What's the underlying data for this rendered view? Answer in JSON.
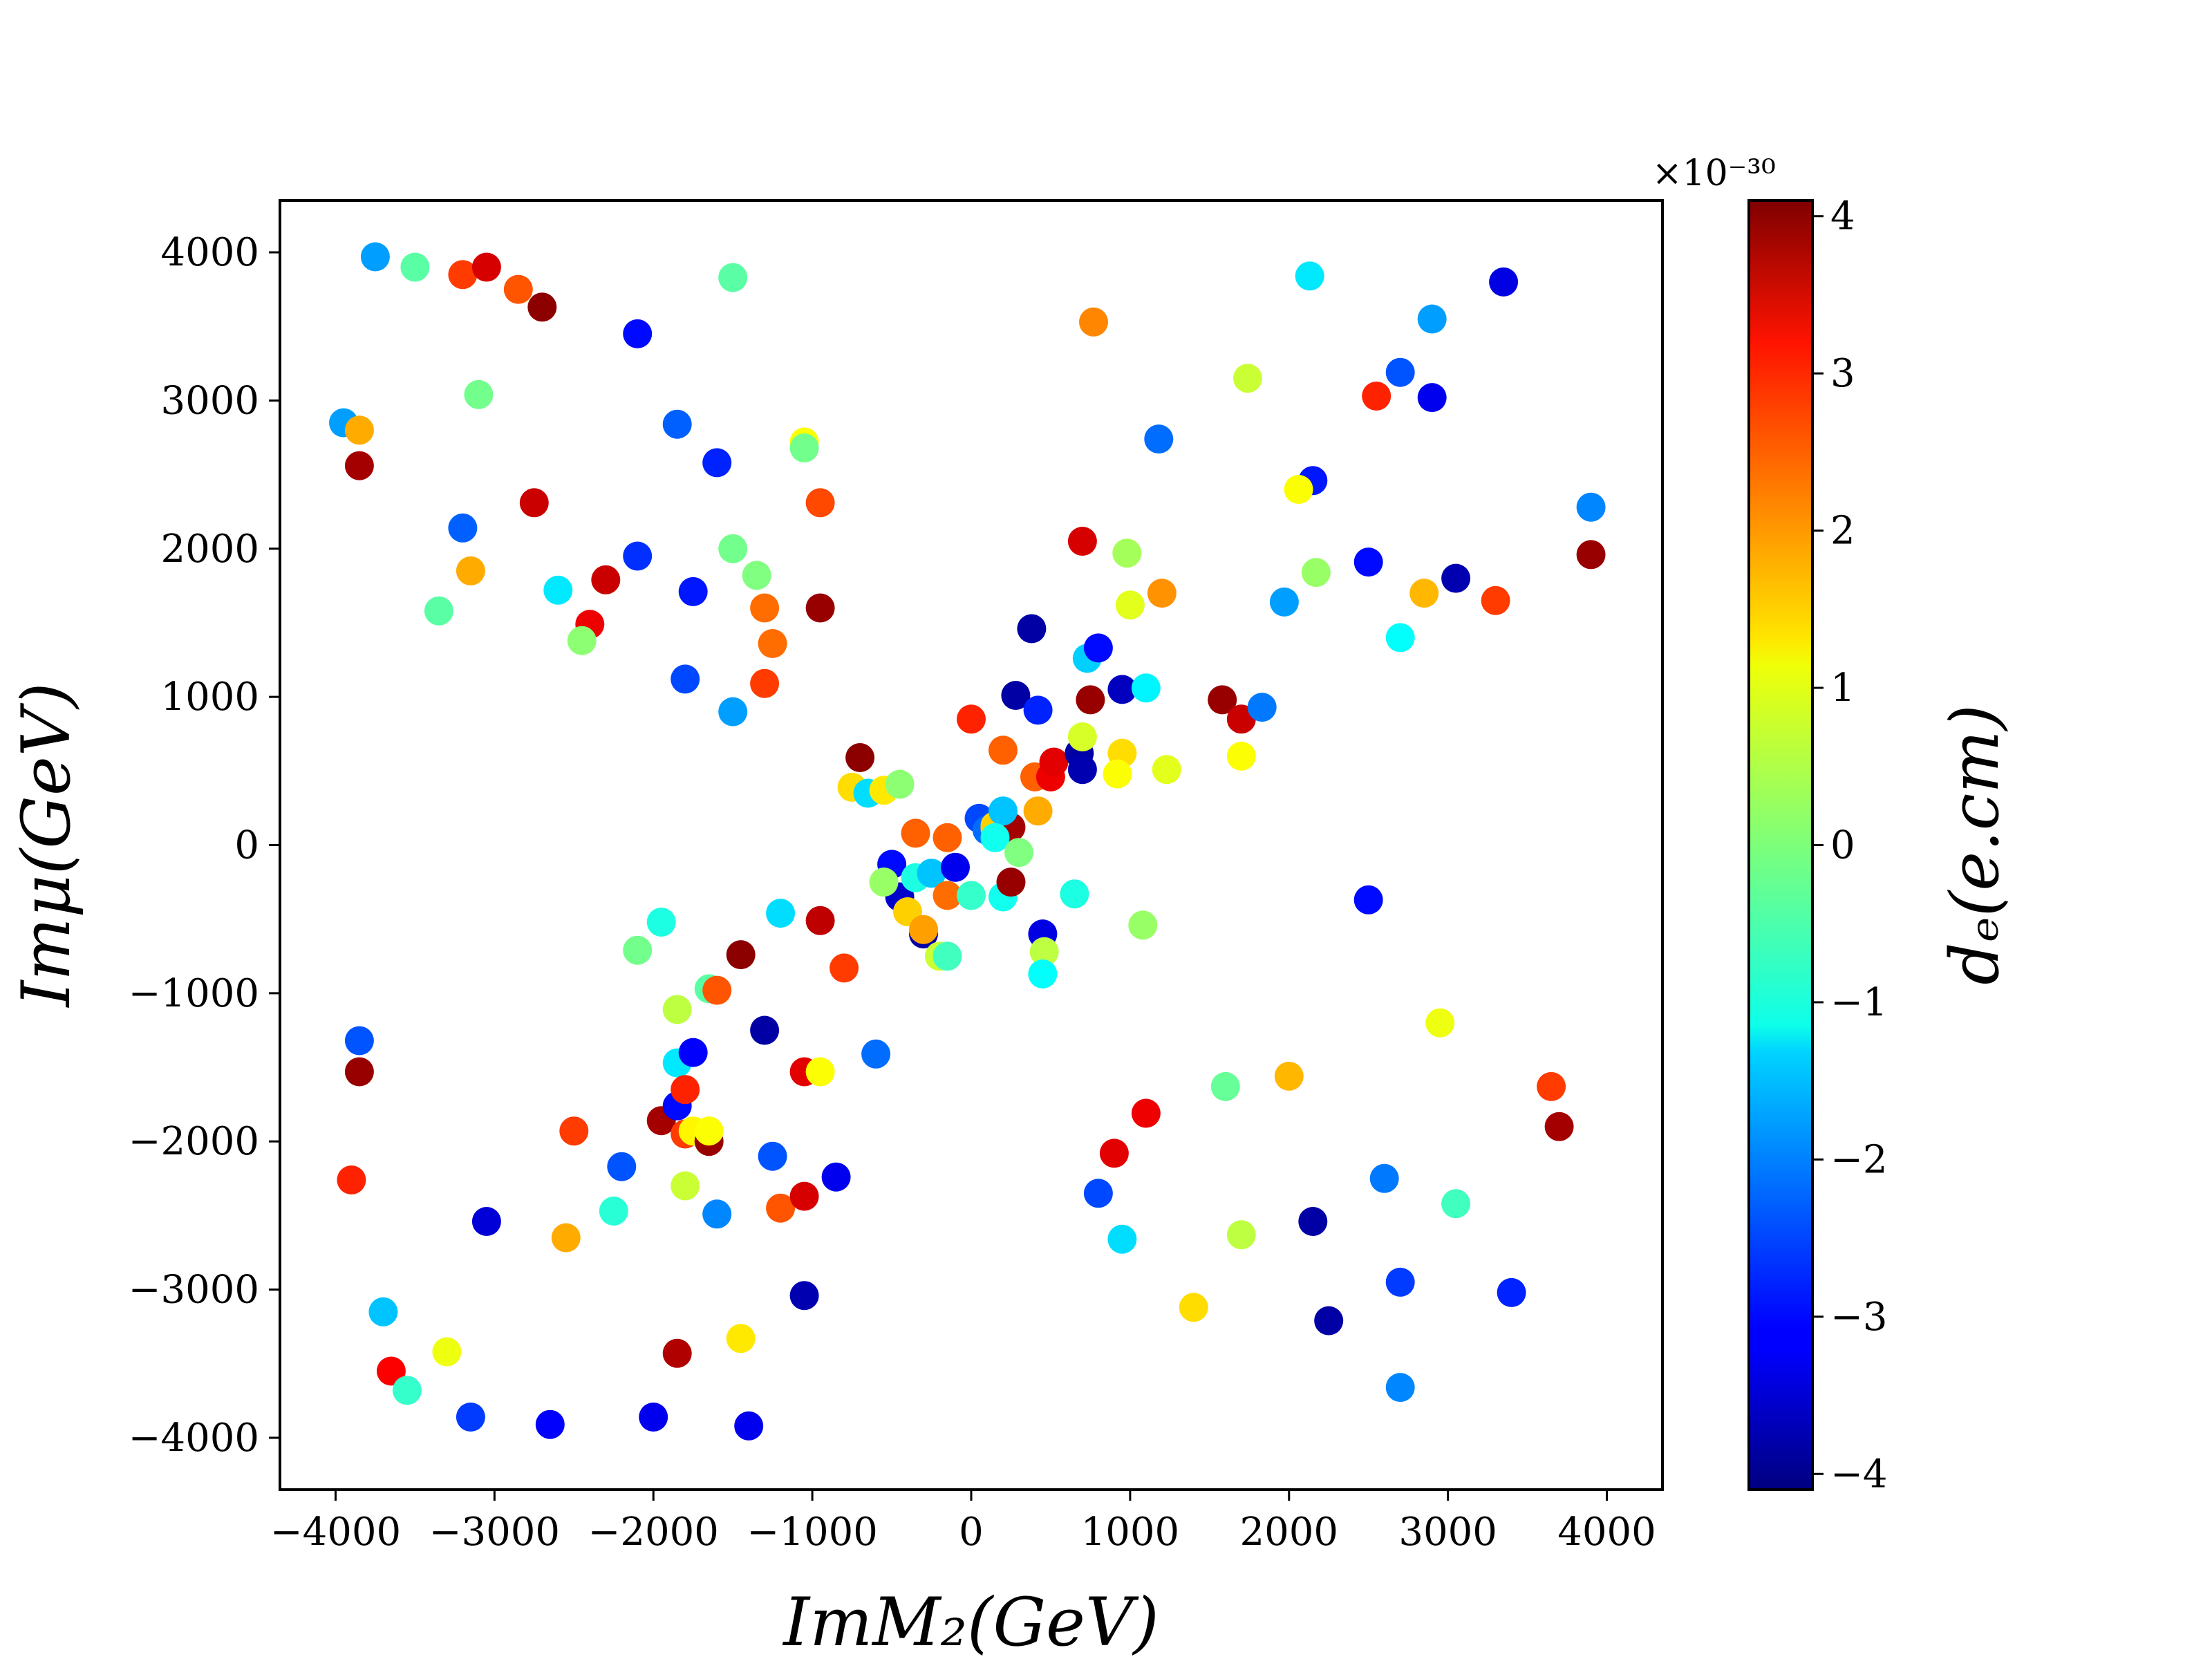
{
  "chart_data": {
    "type": "scatter",
    "title": "",
    "xlabel": "ImM₂(GeV)",
    "ylabel": "Imμ(GeV)",
    "xlim": [
      -4350,
      4350
    ],
    "ylim": [
      -4350,
      4350
    ],
    "xticks": [
      -4000,
      -3000,
      -2000,
      -1000,
      0,
      1000,
      2000,
      3000,
      4000
    ],
    "yticks": [
      -4000,
      -3000,
      -2000,
      -1000,
      0,
      1000,
      2000,
      3000,
      4000
    ],
    "xtick_labels": [
      "−4000",
      "−3000",
      "−2000",
      "−1000",
      "0",
      "1000",
      "2000",
      "3000",
      "4000"
    ],
    "ytick_labels": [
      "−4000",
      "−3000",
      "−2000",
      "−1000",
      "0",
      "1000",
      "2000",
      "3000",
      "4000"
    ],
    "colorbar": {
      "label": "dₑ(e.cm)",
      "exponent_label": "×10⁻³⁰",
      "range": [
        -4.1,
        4.1
      ],
      "ticks": [
        -4,
        -3,
        -2,
        -1,
        0,
        1,
        2,
        3,
        4
      ],
      "tick_labels": [
        "−4",
        "−3",
        "−2",
        "−1",
        "0",
        "1",
        "2",
        "3",
        "4"
      ],
      "colormap": "jet"
    },
    "points": [
      [
        -3750,
        3970,
        -1.8
      ],
      [
        -3500,
        3900,
        -0.3
      ],
      [
        -3200,
        3850,
        2.6
      ],
      [
        -3050,
        3900,
        3.4
      ],
      [
        -2850,
        3750,
        2.4
      ],
      [
        -2700,
        3630,
        4.0
      ],
      [
        -2100,
        3450,
        -3.0
      ],
      [
        -1500,
        3830,
        -0.3
      ],
      [
        -3950,
        2850,
        -1.8
      ],
      [
        -3850,
        2800,
        1.7
      ],
      [
        -3850,
        2560,
        3.8
      ],
      [
        -3100,
        3040,
        -0.1
      ],
      [
        -2750,
        2310,
        3.5
      ],
      [
        -1850,
        2840,
        -2.3
      ],
      [
        -1600,
        2580,
        -2.8
      ],
      [
        -1050,
        2720,
        1.0
      ],
      [
        -1050,
        2680,
        -0.1
      ],
      [
        -950,
        2310,
        2.5
      ],
      [
        -3200,
        2140,
        -2.3
      ],
      [
        -3150,
        1850,
        1.7
      ],
      [
        -3350,
        1580,
        -0.3
      ],
      [
        -2600,
        1720,
        -1.2
      ],
      [
        -2300,
        1790,
        3.5
      ],
      [
        -2400,
        1490,
        3.2
      ],
      [
        -2450,
        1380,
        0.1
      ],
      [
        -2100,
        1950,
        -2.7
      ],
      [
        -1750,
        1710,
        -2.9
      ],
      [
        -1500,
        2000,
        -0.1
      ],
      [
        -1350,
        1820,
        0.0
      ],
      [
        -1300,
        1600,
        2.2
      ],
      [
        -1250,
        1360,
        2.2
      ],
      [
        -950,
        1600,
        3.9
      ],
      [
        -1800,
        1120,
        -2.5
      ],
      [
        -1500,
        900,
        -1.8
      ],
      [
        -1300,
        1090,
        2.6
      ],
      [
        -700,
        590,
        4.0
      ],
      [
        -750,
        390,
        1.3
      ],
      [
        -650,
        350,
        -1.3
      ],
      [
        -550,
        370,
        1.2
      ],
      [
        -450,
        410,
        0.1
      ],
      [
        -350,
        80,
        2.3
      ],
      [
        -150,
        50,
        2.3
      ],
      [
        -500,
        -130,
        -3.0
      ],
      [
        -550,
        -250,
        0.5
      ],
      [
        -450,
        -350,
        -3.5
      ],
      [
        -400,
        -450,
        1.4
      ],
      [
        -350,
        -220,
        -0.8
      ],
      [
        -250,
        -190,
        -1.5
      ],
      [
        -300,
        -600,
        -3.8
      ],
      [
        -300,
        -570,
        1.8
      ],
      [
        -200,
        -750,
        0.6
      ],
      [
        -150,
        -750,
        -0.5
      ],
      [
        -150,
        -340,
        2.2
      ],
      [
        -100,
        -150,
        -3.2
      ],
      [
        0,
        -340,
        -0.6
      ],
      [
        50,
        180,
        -2.5
      ],
      [
        100,
        100,
        -2.2
      ],
      [
        150,
        130,
        1.3
      ],
      [
        150,
        110,
        1.4
      ],
      [
        250,
        120,
        3.8
      ],
      [
        200,
        230,
        -1.5
      ],
      [
        150,
        50,
        -0.9
      ],
      [
        300,
        -50,
        0.0
      ],
      [
        200,
        -350,
        -0.9
      ],
      [
        250,
        -250,
        3.9
      ],
      [
        0,
        850,
        2.8
      ],
      [
        200,
        640,
        2.3
      ],
      [
        280,
        1010,
        -3.8
      ],
      [
        380,
        1460,
        -3.8
      ],
      [
        420,
        910,
        -2.8
      ],
      [
        400,
        460,
        2.3
      ],
      [
        420,
        230,
        1.7
      ],
      [
        500,
        460,
        3.2
      ],
      [
        520,
        560,
        3.3
      ],
      [
        650,
        -330,
        -0.8
      ],
      [
        450,
        -600,
        -3.3
      ],
      [
        460,
        -720,
        0.5
      ],
      [
        450,
        -870,
        -1.0
      ],
      [
        680,
        620,
        -3.8
      ],
      [
        700,
        510,
        -3.7
      ],
      [
        700,
        730,
        0.7
      ],
      [
        750,
        980,
        3.9
      ],
      [
        700,
        2050,
        3.4
      ],
      [
        770,
        3530,
        2.0
      ],
      [
        730,
        1260,
        -1.4
      ],
      [
        800,
        1330,
        -3.0
      ],
      [
        950,
        1050,
        -3.6
      ],
      [
        980,
        1970,
        0.3
      ],
      [
        1000,
        1620,
        0.8
      ],
      [
        1180,
        2740,
        -2.2
      ],
      [
        1200,
        1700,
        1.9
      ],
      [
        950,
        620,
        1.3
      ],
      [
        920,
        480,
        1.0
      ],
      [
        1100,
        1060,
        -1.1
      ],
      [
        1230,
        510,
        0.8
      ],
      [
        1080,
        -540,
        0.2
      ],
      [
        1580,
        980,
        3.9
      ],
      [
        1700,
        850,
        3.5
      ],
      [
        1700,
        600,
        1.0
      ],
      [
        1830,
        930,
        -2.1
      ],
      [
        1740,
        3150,
        0.6
      ],
      [
        2130,
        3840,
        -1.2
      ],
      [
        2150,
        2460,
        -2.9
      ],
      [
        2060,
        2400,
        1.0
      ],
      [
        2170,
        1840,
        0.2
      ],
      [
        1970,
        1640,
        -1.8
      ],
      [
        2550,
        3030,
        2.8
      ],
      [
        2700,
        3190,
        -2.4
      ],
      [
        2900,
        3020,
        -3.2
      ],
      [
        2900,
        3550,
        -1.8
      ],
      [
        3350,
        3800,
        -3.3
      ],
      [
        3900,
        2280,
        -2.0
      ],
      [
        3900,
        1960,
        3.9
      ],
      [
        2500,
        1910,
        -3.0
      ],
      [
        2700,
        1400,
        -1.0
      ],
      [
        2850,
        1700,
        1.6
      ],
      [
        3050,
        1800,
        -3.7
      ],
      [
        3300,
        1650,
        2.6
      ],
      [
        2500,
        -370,
        -3.0
      ],
      [
        2950,
        -1200,
        0.9
      ],
      [
        3650,
        -1630,
        2.6
      ],
      [
        3700,
        -1900,
        3.8
      ],
      [
        1600,
        -1630,
        -0.2
      ],
      [
        2000,
        -1560,
        1.6
      ],
      [
        1100,
        -1810,
        3.2
      ],
      [
        900,
        -2080,
        3.3
      ],
      [
        800,
        -2350,
        -2.5
      ],
      [
        950,
        -2660,
        -1.3
      ],
      [
        1400,
        -3120,
        1.3
      ],
      [
        1700,
        -2630,
        0.5
      ],
      [
        2150,
        -2540,
        -3.8
      ],
      [
        2250,
        -3210,
        -3.8
      ],
      [
        2600,
        -2250,
        -2.1
      ],
      [
        3050,
        -2420,
        -0.5
      ],
      [
        2700,
        -2950,
        -2.6
      ],
      [
        2700,
        -3660,
        -2.0
      ],
      [
        3400,
        -3020,
        -2.8
      ],
      [
        -3850,
        -1320,
        -2.4
      ],
      [
        -3850,
        -1530,
        3.9
      ],
      [
        -3900,
        -2260,
        2.8
      ],
      [
        -3700,
        -3150,
        -1.5
      ],
      [
        -3650,
        -3550,
        3.1
      ],
      [
        -3550,
        -3680,
        -0.6
      ],
      [
        -3300,
        -3420,
        0.9
      ],
      [
        -3150,
        -3860,
        -2.6
      ],
      [
        -3050,
        -2540,
        -3.4
      ],
      [
        -2650,
        -3910,
        -3.1
      ],
      [
        -2550,
        -2650,
        1.7
      ],
      [
        -2500,
        -1930,
        2.6
      ],
      [
        -2200,
        -2170,
        -2.4
      ],
      [
        -2250,
        -2470,
        -0.7
      ],
      [
        -2100,
        -710,
        -0.1
      ],
      [
        -1950,
        -520,
        -0.8
      ],
      [
        -1950,
        -1860,
        3.8
      ],
      [
        -2000,
        -3860,
        -3.2
      ],
      [
        -1850,
        -1470,
        -1.2
      ],
      [
        -1850,
        -1760,
        -3.0
      ],
      [
        -1800,
        -1650,
        2.8
      ],
      [
        -1850,
        -1110,
        0.5
      ],
      [
        -1750,
        -1400,
        -3.1
      ],
      [
        -1800,
        -1950,
        2.6
      ],
      [
        -1800,
        -2300,
        0.6
      ],
      [
        -1750,
        -1930,
        1.1
      ],
      [
        -1650,
        -970,
        -0.3
      ],
      [
        -1600,
        -980,
        2.4
      ],
      [
        -1600,
        -2490,
        -2.0
      ],
      [
        -1650,
        -2000,
        3.9
      ],
      [
        -1650,
        -1930,
        1.0
      ],
      [
        -1850,
        -3430,
        3.7
      ],
      [
        -1450,
        -3330,
        1.2
      ],
      [
        -1400,
        -3920,
        -3.2
      ],
      [
        -1450,
        -740,
        4.0
      ],
      [
        -1300,
        -1250,
        -3.8
      ],
      [
        -1250,
        -2100,
        -2.4
      ],
      [
        -1200,
        -2450,
        2.4
      ],
      [
        -1200,
        -460,
        -1.3
      ],
      [
        -1050,
        -1530,
        3.3
      ],
      [
        -950,
        -1530,
        1.0
      ],
      [
        -950,
        -510,
        3.6
      ],
      [
        -1050,
        -2370,
        3.4
      ],
      [
        -1050,
        -3040,
        -3.7
      ],
      [
        -800,
        -830,
        2.6
      ],
      [
        -850,
        -2240,
        -3.2
      ],
      [
        -600,
        -1410,
        -2.2
      ],
      [
        -550,
        -250,
        0.2
      ]
    ]
  }
}
